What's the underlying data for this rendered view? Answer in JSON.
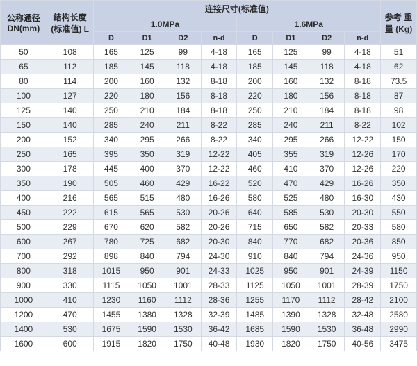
{
  "header": {
    "dn": "公称通径\nDN(mm)",
    "len": "结构长度\n(标准值)\nL",
    "conn": "连接尺寸(标准值)",
    "p1": "1.0MPa",
    "p2": "1.6MPa",
    "kg": "参考\n重量\n(Kg)",
    "sub": [
      "D",
      "D1",
      "D2",
      "n-d",
      "D",
      "D1",
      "D2",
      "n-d"
    ]
  },
  "rows": [
    [
      "50",
      "108",
      "165",
      "125",
      "99",
      "4-18",
      "165",
      "125",
      "99",
      "4-18",
      "51"
    ],
    [
      "65",
      "112",
      "185",
      "145",
      "118",
      "4-18",
      "185",
      "145",
      "118",
      "4-18",
      "62"
    ],
    [
      "80",
      "114",
      "200",
      "160",
      "132",
      "8-18",
      "200",
      "160",
      "132",
      "8-18",
      "73.5"
    ],
    [
      "100",
      "127",
      "220",
      "180",
      "156",
      "8-18",
      "220",
      "180",
      "156",
      "8-18",
      "87"
    ],
    [
      "125",
      "140",
      "250",
      "210",
      "184",
      "8-18",
      "250",
      "210",
      "184",
      "8-18",
      "98"
    ],
    [
      "150",
      "140",
      "285",
      "240",
      "211",
      "8-22",
      "285",
      "240",
      "211",
      "8-22",
      "102"
    ],
    [
      "200",
      "152",
      "340",
      "295",
      "266",
      "8-22",
      "340",
      "295",
      "266",
      "12-22",
      "150"
    ],
    [
      "250",
      "165",
      "395",
      "350",
      "319",
      "12-22",
      "405",
      "355",
      "319",
      "12-26",
      "170"
    ],
    [
      "300",
      "178",
      "445",
      "400",
      "370",
      "12-22",
      "460",
      "410",
      "370",
      "12-26",
      "220"
    ],
    [
      "350",
      "190",
      "505",
      "460",
      "429",
      "16-22",
      "520",
      "470",
      "429",
      "16-26",
      "350"
    ],
    [
      "400",
      "216",
      "565",
      "515",
      "480",
      "16-26",
      "580",
      "525",
      "480",
      "16-30",
      "430"
    ],
    [
      "450",
      "222",
      "615",
      "565",
      "530",
      "20-26",
      "640",
      "585",
      "530",
      "20-30",
      "550"
    ],
    [
      "500",
      "229",
      "670",
      "620",
      "582",
      "20-26",
      "715",
      "650",
      "582",
      "20-33",
      "580"
    ],
    [
      "600",
      "267",
      "780",
      "725",
      "682",
      "20-30",
      "840",
      "770",
      "682",
      "20-36",
      "850"
    ],
    [
      "700",
      "292",
      "898",
      "840",
      "794",
      "24-30",
      "910",
      "840",
      "794",
      "24-36",
      "950"
    ],
    [
      "800",
      "318",
      "1015",
      "950",
      "901",
      "24-33",
      "1025",
      "950",
      "901",
      "24-39",
      "1150"
    ],
    [
      "900",
      "330",
      "1115",
      "1050",
      "1001",
      "28-33",
      "1125",
      "1050",
      "1001",
      "28-39",
      "1750"
    ],
    [
      "1000",
      "410",
      "1230",
      "1160",
      "1112",
      "28-36",
      "1255",
      "1170",
      "1112",
      "28-42",
      "2100"
    ],
    [
      "1200",
      "470",
      "1455",
      "1380",
      "1328",
      "32-39",
      "1485",
      "1390",
      "1328",
      "32-48",
      "2580"
    ],
    [
      "1400",
      "530",
      "1675",
      "1590",
      "1530",
      "36-42",
      "1685",
      "1590",
      "1530",
      "36-48",
      "2990"
    ],
    [
      "1600",
      "600",
      "1915",
      "1820",
      "1750",
      "40-48",
      "1930",
      "1820",
      "1750",
      "40-56",
      "3475"
    ]
  ]
}
